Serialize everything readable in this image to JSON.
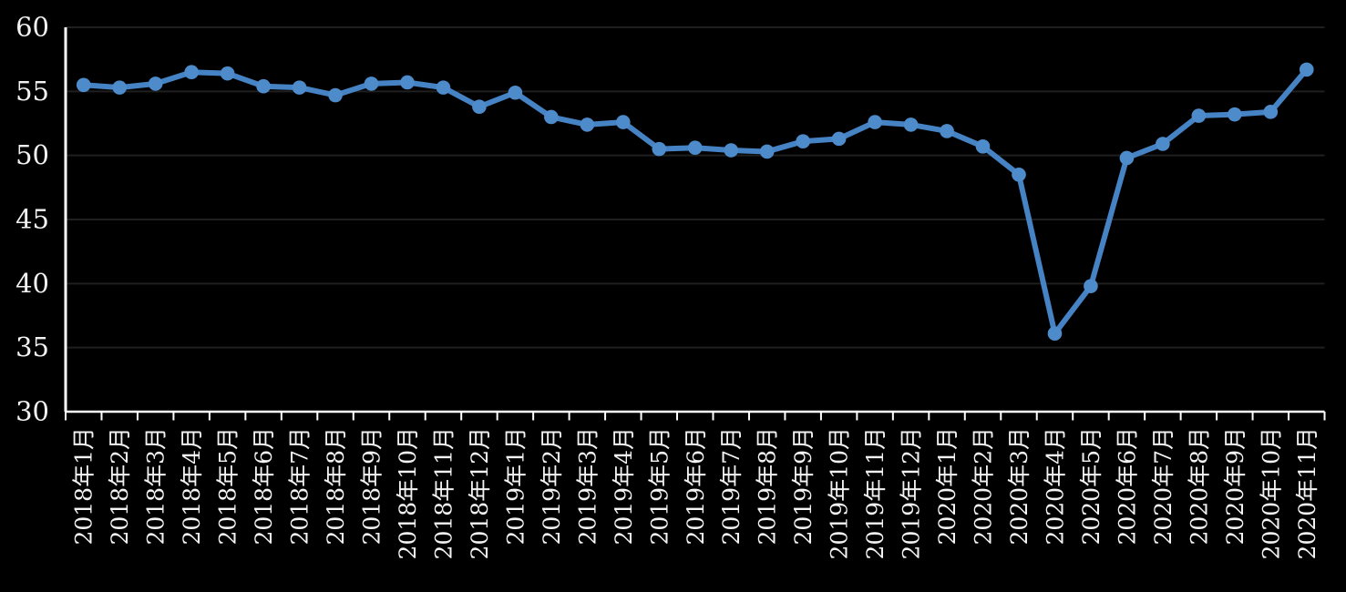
{
  "chart": {
    "background_color": "#000000",
    "text_color": "#F2F2F2",
    "gridline_color": "#1F1F1F",
    "axis_color": "#FFFFFF",
    "line_color": "#4683C4",
    "marker_color": "#4E8BCB"
  },
  "chart_data": {
    "type": "line",
    "categories": [
      "2018年1月",
      "2018年2月",
      "2018年3月",
      "2018年4月",
      "2018年5月",
      "2018年6月",
      "2018年7月",
      "2018年8月",
      "2018年9月",
      "2018年10月",
      "2018年11月",
      "2018年12月",
      "2019年1月",
      "2019年2月",
      "2019年3月",
      "2019年4月",
      "2019年5月",
      "2019年6月",
      "2019年7月",
      "2019年8月",
      "2019年9月",
      "2019年10月",
      "2019年11月",
      "2019年12月",
      "2020年1月",
      "2020年2月",
      "2020年3月",
      "2020年4月",
      "2020年5月",
      "2020年6月",
      "2020年7月",
      "2020年8月",
      "2020年9月",
      "2020年10月",
      "2020年11月"
    ],
    "values": [
      55.5,
      55.3,
      55.6,
      56.5,
      56.4,
      55.4,
      55.3,
      54.7,
      55.6,
      55.7,
      55.3,
      53.8,
      54.9,
      53.0,
      52.4,
      52.6,
      50.5,
      50.6,
      50.4,
      50.3,
      51.1,
      51.3,
      52.6,
      52.4,
      51.9,
      50.7,
      48.5,
      36.1,
      39.8,
      49.8,
      50.9,
      53.1,
      53.2,
      53.4,
      56.7
    ],
    "xlabel": "",
    "ylabel": "",
    "ylim": [
      30,
      60
    ],
    "y_ticks": [
      30,
      35,
      40,
      45,
      50,
      55,
      60
    ],
    "grid": true,
    "legend_position": "none",
    "marker": "circle"
  }
}
